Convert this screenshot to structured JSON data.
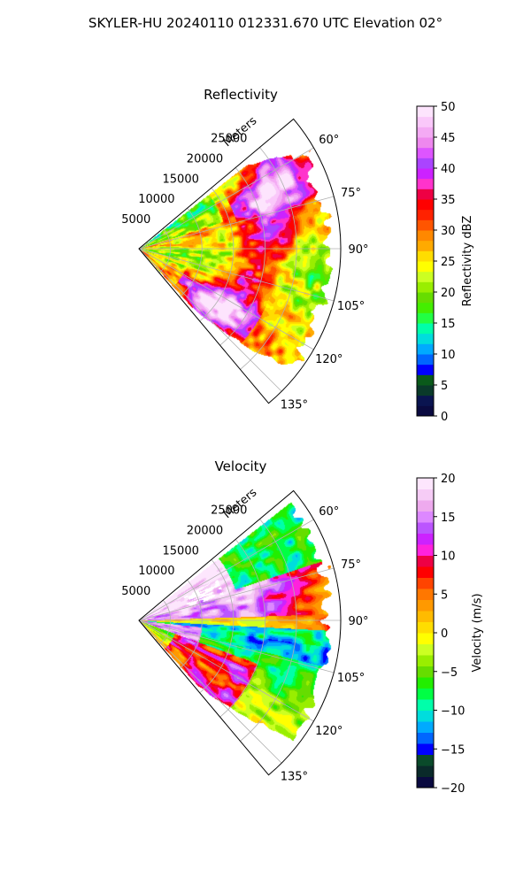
{
  "title": "SKYLER-HU  20240110  012331.670 UTC Elevation 02°",
  "chart_data": [
    {
      "type": "polar-ppi",
      "title": "Reflectivity",
      "range_axis_label": "Meters",
      "range_ticks": [
        "5000",
        "10000",
        "15000",
        "20000",
        "25000"
      ],
      "range_values": [
        5000,
        10000,
        15000,
        20000,
        25000
      ],
      "rmax": 32000,
      "azimuth_range": [
        50,
        140
      ],
      "azimuth_ticks": [
        "60°",
        "75°",
        "90°",
        "105°",
        "120°",
        "135°"
      ],
      "azimuth_values": [
        60,
        75,
        90,
        105,
        120,
        135
      ],
      "colorbar": {
        "label": "Reflectivity dBZ",
        "min": 0,
        "max": 50,
        "ticks": [
          "0",
          "5",
          "10",
          "15",
          "20",
          "25",
          "30",
          "35",
          "40",
          "45",
          "50"
        ],
        "colors": [
          "#0a0a40",
          "#0a1450",
          "#0a3a2a",
          "#0a5a1a",
          "#0000ff",
          "#0066ff",
          "#00aaff",
          "#00dddd",
          "#00ffaa",
          "#22ff44",
          "#44ee00",
          "#66dd00",
          "#99ee00",
          "#ccff22",
          "#ffff00",
          "#ffdd00",
          "#ffaa00",
          "#ff8800",
          "#ff5500",
          "#ff2200",
          "#ff0000",
          "#ee0044",
          "#ff33cc",
          "#cc22ff",
          "#aa44ff",
          "#dd55ff",
          "#ee88ee",
          "#f4aaf4",
          "#fac8fa",
          "#fde4fd"
        ]
      }
    },
    {
      "type": "polar-ppi",
      "title": "Velocity",
      "range_axis_label": "Meters",
      "range_ticks": [
        "5000",
        "10000",
        "15000",
        "20000",
        "25000"
      ],
      "range_values": [
        5000,
        10000,
        15000,
        20000,
        25000
      ],
      "rmax": 32000,
      "azimuth_range": [
        50,
        140
      ],
      "azimuth_ticks": [
        "60°",
        "75°",
        "90°",
        "105°",
        "120°",
        "135°"
      ],
      "azimuth_values": [
        60,
        75,
        90,
        105,
        120,
        135
      ],
      "colorbar": {
        "label": "Velocity (m/s)",
        "min": -20,
        "max": 20,
        "ticks": [
          "−20",
          "−15",
          "−10",
          "−5",
          "0",
          "5",
          "10",
          "15",
          "20"
        ],
        "colors": [
          "#0a0a40",
          "#0a2a2a",
          "#0a4a2a",
          "#0000ff",
          "#0066ff",
          "#00aaff",
          "#00dddd",
          "#00ffaa",
          "#00ff44",
          "#22ee00",
          "#66dd00",
          "#99ee00",
          "#ccff22",
          "#ffff00",
          "#ffdd00",
          "#ffbb00",
          "#ff9900",
          "#ff7700",
          "#ff4400",
          "#ff0000",
          "#ee0044",
          "#ff22dd",
          "#cc22ff",
          "#bb55ff",
          "#dd88ff",
          "#eeaaee",
          "#f6ccf6",
          "#fde6fd"
        ]
      }
    }
  ]
}
